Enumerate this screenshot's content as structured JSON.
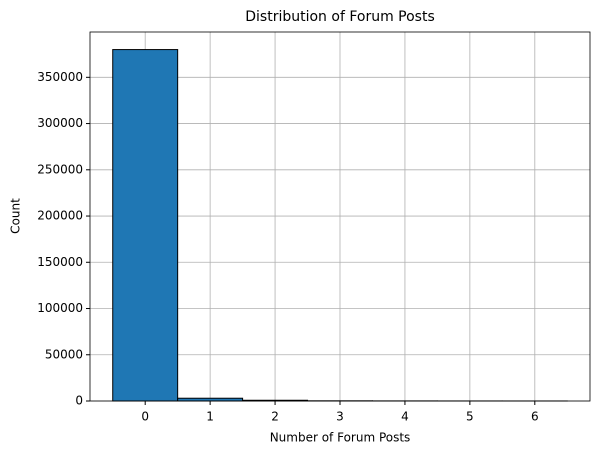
{
  "chart_data": {
    "type": "histogram",
    "title": "Distribution of Forum Posts",
    "x_label": "Number of Forum Posts",
    "y_label": "Count",
    "bins": [
      -0.5,
      0.5,
      1.5,
      2.5,
      3.5,
      4.5,
      5.5,
      6.5
    ],
    "values": [
      380000,
      3000,
      800,
      200,
      100,
      50,
      30
    ],
    "color": "#1f77b4",
    "edgecolor": "#000000",
    "xlim": [
      -0.85,
      6.85
    ],
    "xticks": [
      0,
      1,
      2,
      3,
      4,
      5,
      6
    ],
    "ylim": [
      0,
      399000
    ],
    "yticks": [
      0,
      50000,
      100000,
      150000,
      200000,
      250000,
      300000,
      350000
    ],
    "grid": true
  }
}
